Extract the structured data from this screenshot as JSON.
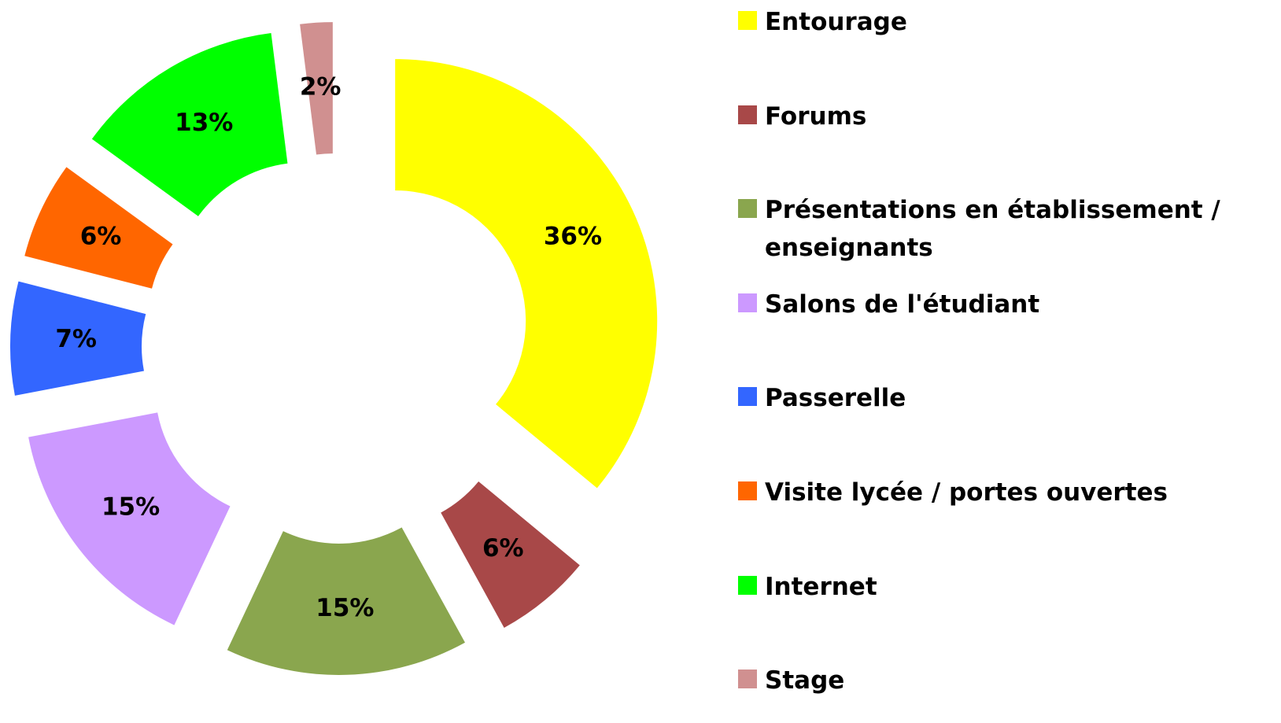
{
  "chart_data": {
    "type": "donut",
    "categories": [
      "Entourage",
      "Forums",
      "Présentations en établissement / enseignants",
      "Salons de l'étudiant",
      "Passerelle",
      "Visite lycée / portes ouvertes",
      "Internet",
      "Stage"
    ],
    "values": [
      36,
      6,
      15,
      15,
      7,
      6,
      13,
      2
    ],
    "value_labels": [
      "36%",
      "6%",
      "15%",
      "15%",
      "7%",
      "6%",
      "13%",
      "2%"
    ],
    "colors": [
      "#ffff00",
      "#a84848",
      "#8aa64e",
      "#cc99ff",
      "#3366ff",
      "#ff6600",
      "#00ff00",
      "#d09090"
    ],
    "legend": "right"
  }
}
